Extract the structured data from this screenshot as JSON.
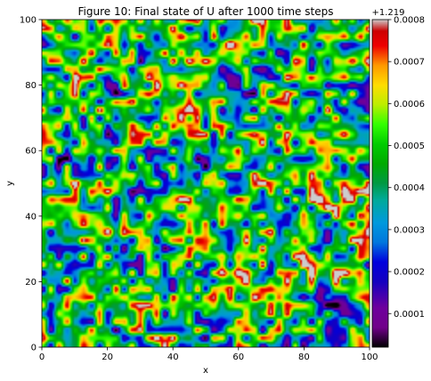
{
  "chart_data": {
    "type": "heatmap",
    "title": "Figure 10: Final state of U after 1000 time steps",
    "xlabel": "x",
    "ylabel": "y",
    "xlim": [
      0,
      100
    ],
    "ylim": [
      0,
      100
    ],
    "xticks": [
      0,
      20,
      40,
      60,
      80,
      100
    ],
    "yticks": [
      0,
      20,
      40,
      60,
      80,
      100
    ],
    "colormap": "nipy_spectral",
    "colorbar": {
      "offset": "+1.219",
      "range": [
        2e-05,
        0.0008
      ],
      "ticks": [
        "0.0001",
        "0.0002",
        "0.0003",
        "0.0004",
        "0.0005",
        "0.0006",
        "0.0007",
        "0.0008"
      ]
    },
    "grid": false
  }
}
